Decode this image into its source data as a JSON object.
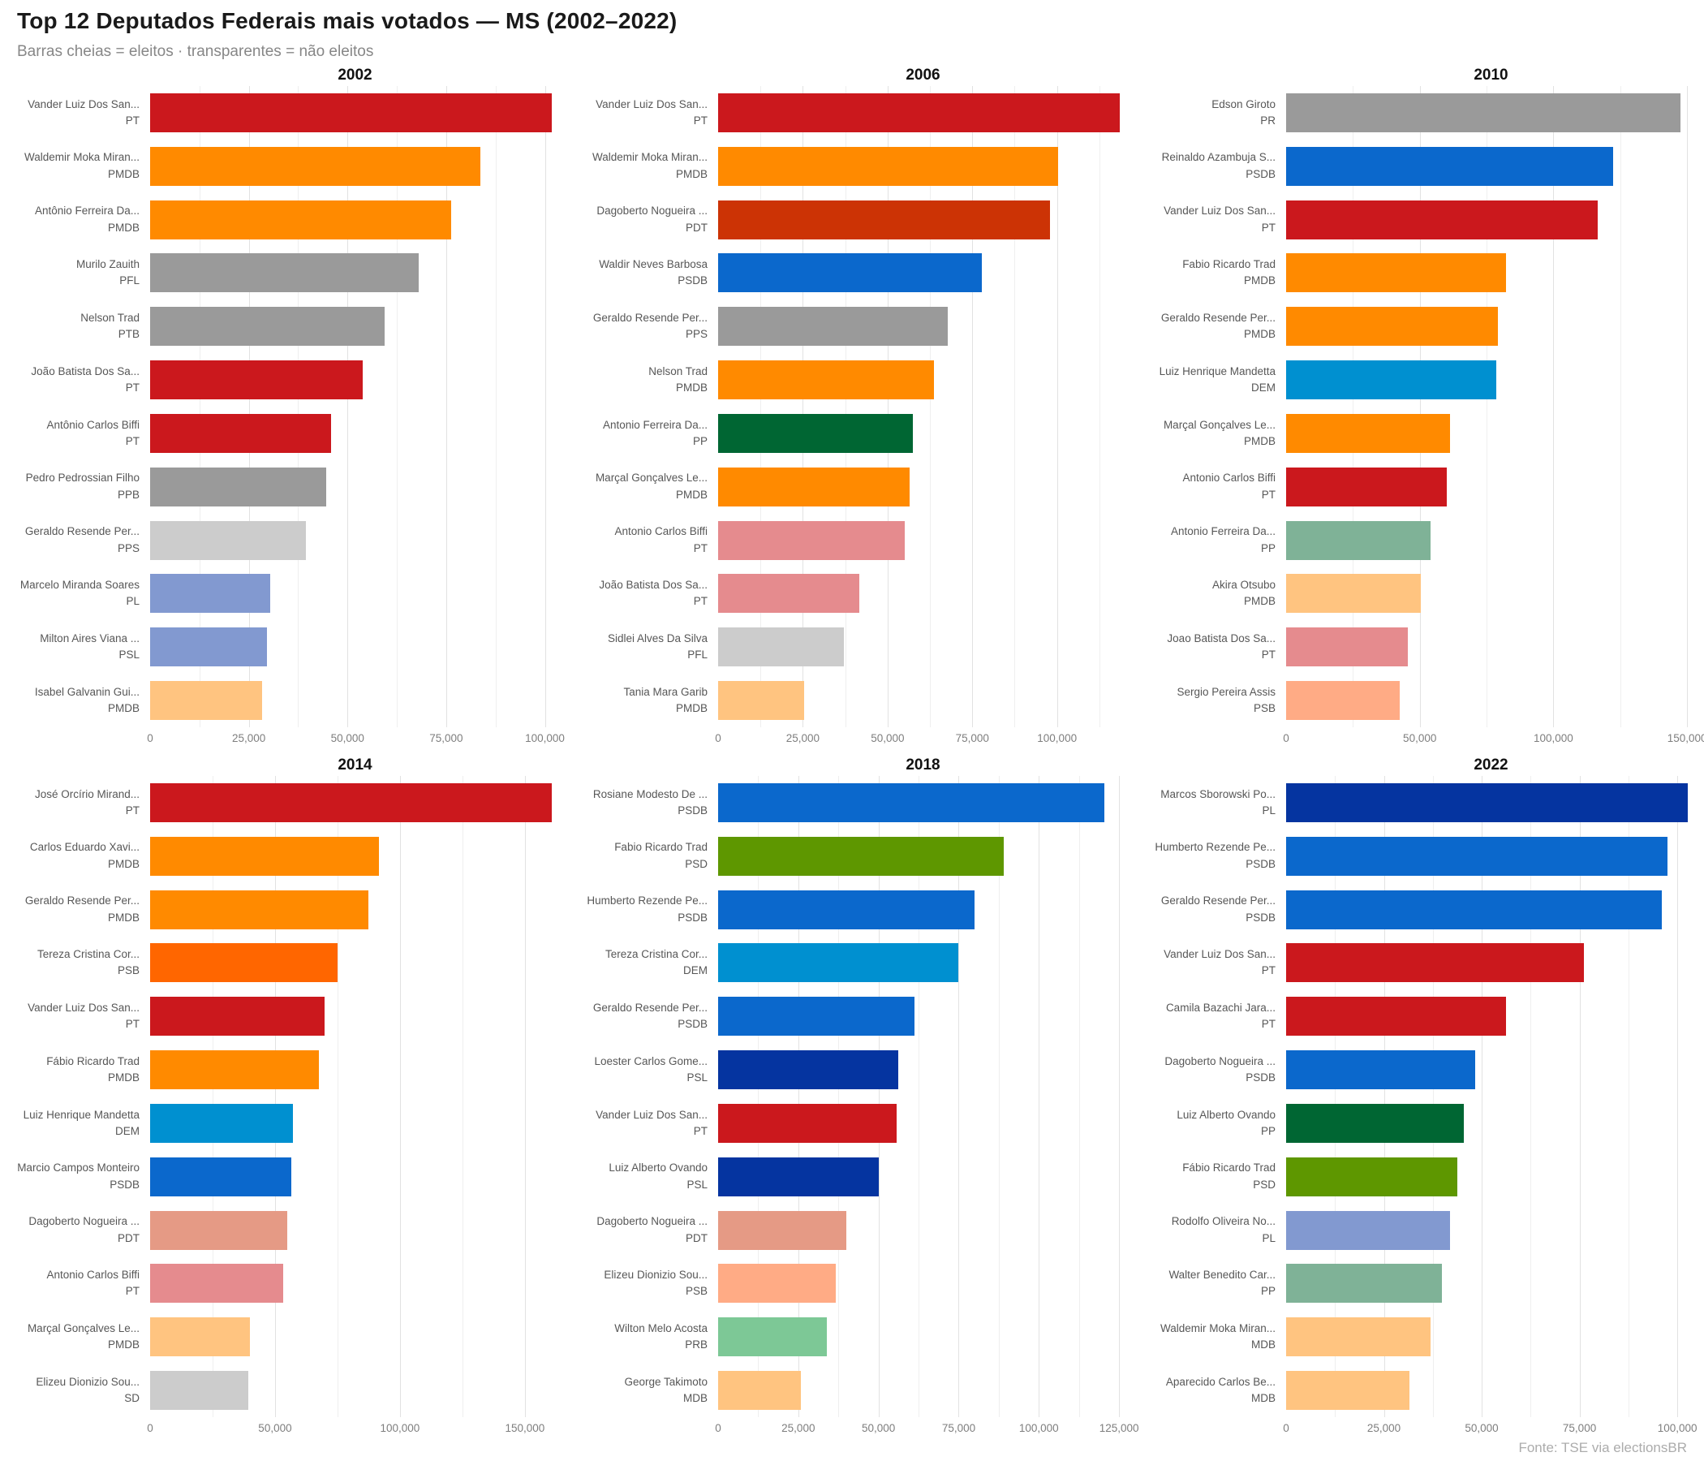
{
  "header": {
    "title": "Top 12 Deputados Federais mais votados — MS (2002–2022)",
    "subtitle": "Barras cheias = eleitos · transparentes = não eleitos"
  },
  "footer": {
    "source": "Fonte: TSE via electionsBR"
  },
  "colors": {
    "pt_full": "#CB181D",
    "pt_faded": "#E58B8E",
    "pmdb_full": "#FF8A00",
    "pmdb_faded": "#FFC480",
    "gray_full": "#9A9A9A",
    "gray_faded": "#CCCCCC",
    "psdb_full": "#0B68CC",
    "dem_full": "#0090D0",
    "pl_psl_full": "#0534A0",
    "pl_psl_faded": "#8299D0",
    "pdt_full": "#CC3305",
    "pdt_faded": "#E59A85",
    "pp_full": "#006633",
    "pp_faded": "#7FB297",
    "psb_full": "#FF6600",
    "psb_faded": "#FFAB85",
    "psd_full": "#5E9700",
    "prb_faded": "#7DC896",
    "gridline_major": "#E2E2E2",
    "gridline_minor": "#EFEFEF"
  },
  "chart_data": [
    {
      "type": "bar",
      "orientation": "horizontal",
      "title": "2002",
      "xlim": [
        0,
        103800
      ],
      "xticks": [
        0,
        25000,
        50000,
        75000,
        100000
      ],
      "bars": [
        {
          "name": "Vander Luiz Dos San...",
          "party": "PT",
          "value": 101800,
          "color": "#CB181D",
          "elected": true
        },
        {
          "name": "Waldemir Moka Miran...",
          "party": "PMDB",
          "value": 83700,
          "color": "#FF8A00",
          "elected": true
        },
        {
          "name": "Antônio Ferreira Da...",
          "party": "PMDB",
          "value": 76300,
          "color": "#FF8A00",
          "elected": true
        },
        {
          "name": "Murilo Zauith",
          "party": "PFL",
          "value": 68000,
          "color": "#9A9A9A",
          "elected": true
        },
        {
          "name": "Nelson Trad",
          "party": "PTB",
          "value": 59300,
          "color": "#9A9A9A",
          "elected": true
        },
        {
          "name": "João Batista Dos Sa...",
          "party": "PT",
          "value": 53800,
          "color": "#CB181D",
          "elected": true
        },
        {
          "name": "Antônio Carlos Biffi",
          "party": "PT",
          "value": 45800,
          "color": "#CB181D",
          "elected": true
        },
        {
          "name": "Pedro Pedrossian Filho",
          "party": "PPB",
          "value": 44700,
          "color": "#9A9A9A",
          "elected": true
        },
        {
          "name": "Geraldo Resende Per...",
          "party": "PPS",
          "value": 39500,
          "color": "#CCCCCC",
          "elected": false
        },
        {
          "name": "Marcelo Miranda Soares",
          "party": "PL",
          "value": 30400,
          "color": "#8299D0",
          "elected": false
        },
        {
          "name": "Milton Aires Viana ...",
          "party": "PSL",
          "value": 29700,
          "color": "#8299D0",
          "elected": false
        },
        {
          "name": "Isabel Galvanin Gui...",
          "party": "PMDB",
          "value": 28400,
          "color": "#FFC480",
          "elected": false
        }
      ]
    },
    {
      "type": "bar",
      "orientation": "horizontal",
      "title": "2006",
      "xlim": [
        0,
        120900
      ],
      "xticks": [
        0,
        25000,
        50000,
        75000,
        100000
      ],
      "bars": [
        {
          "name": "Vander Luiz Dos San...",
          "party": "PT",
          "value": 118500,
          "color": "#CB181D",
          "elected": true
        },
        {
          "name": "Waldemir Moka Miran...",
          "party": "PMDB",
          "value": 100400,
          "color": "#FF8A00",
          "elected": true
        },
        {
          "name": "Dagoberto Nogueira ...",
          "party": "PDT",
          "value": 97900,
          "color": "#CC3305",
          "elected": true
        },
        {
          "name": "Waldir Neves Barbosa",
          "party": "PSDB",
          "value": 77900,
          "color": "#0B68CC",
          "elected": true
        },
        {
          "name": "Geraldo Resende Per...",
          "party": "PPS",
          "value": 67800,
          "color": "#9A9A9A",
          "elected": true
        },
        {
          "name": "Nelson Trad",
          "party": "PMDB",
          "value": 63700,
          "color": "#FF8A00",
          "elected": true
        },
        {
          "name": "Antonio Ferreira Da...",
          "party": "PP",
          "value": 57400,
          "color": "#006633",
          "elected": true
        },
        {
          "name": "Marçal Gonçalves Le...",
          "party": "PMDB",
          "value": 56600,
          "color": "#FF8A00",
          "elected": true
        },
        {
          "name": "Antonio Carlos Biffi",
          "party": "PT",
          "value": 55000,
          "color": "#E58B8E",
          "elected": false
        },
        {
          "name": "João Batista Dos Sa...",
          "party": "PT",
          "value": 41700,
          "color": "#E58B8E",
          "elected": false
        },
        {
          "name": "Sidlei Alves Da Silva",
          "party": "PFL",
          "value": 37200,
          "color": "#CCCCCC",
          "elected": false
        },
        {
          "name": "Tania Mara Garib",
          "party": "PMDB",
          "value": 25400,
          "color": "#FFC480",
          "elected": false
        }
      ]
    },
    {
      "type": "bar",
      "orientation": "horizontal",
      "title": "2010",
      "xlim": [
        0,
        153300
      ],
      "xticks": [
        0,
        50000,
        100000,
        150000
      ],
      "bars": [
        {
          "name": "Edson Giroto",
          "party": "PR",
          "value": 147400,
          "color": "#9A9A9A",
          "elected": true
        },
        {
          "name": "Reinaldo Azambuja S...",
          "party": "PSDB",
          "value": 122300,
          "color": "#0B68CC",
          "elected": true
        },
        {
          "name": "Vander Luiz Dos San...",
          "party": "PT",
          "value": 116600,
          "color": "#CB181D",
          "elected": true
        },
        {
          "name": "Fabio Ricardo Trad",
          "party": "PMDB",
          "value": 82200,
          "color": "#FF8A00",
          "elected": true
        },
        {
          "name": "Geraldo Resende Per...",
          "party": "PMDB",
          "value": 79200,
          "color": "#FF8A00",
          "elected": true
        },
        {
          "name": "Luiz Henrique Mandetta",
          "party": "DEM",
          "value": 78500,
          "color": "#0090D0",
          "elected": true
        },
        {
          "name": "Marçal Gonçalves Le...",
          "party": "PMDB",
          "value": 61400,
          "color": "#FF8A00",
          "elected": true
        },
        {
          "name": "Antonio Carlos Biffi",
          "party": "PT",
          "value": 60200,
          "color": "#CB181D",
          "elected": true
        },
        {
          "name": "Antonio Ferreira Da...",
          "party": "PP",
          "value": 54100,
          "color": "#7FB297",
          "elected": false
        },
        {
          "name": "Akira Otsubo",
          "party": "PMDB",
          "value": 50300,
          "color": "#FFC480",
          "elected": false
        },
        {
          "name": "Joao Batista Dos Sa...",
          "party": "PT",
          "value": 45500,
          "color": "#E58B8E",
          "elected": false
        },
        {
          "name": "Sergio Pereira Assis",
          "party": "PSB",
          "value": 42500,
          "color": "#FFAB85",
          "elected": false
        }
      ]
    },
    {
      "type": "bar",
      "orientation": "horizontal",
      "title": "2014",
      "xlim": [
        0,
        164000
      ],
      "xticks": [
        0,
        50000,
        100000,
        150000
      ],
      "bars": [
        {
          "name": "José Orcírio Mirand...",
          "party": "PT",
          "value": 160800,
          "color": "#CB181D",
          "elected": true
        },
        {
          "name": "Carlos Eduardo Xavi...",
          "party": "PMDB",
          "value": 91600,
          "color": "#FF8A00",
          "elected": true
        },
        {
          "name": "Geraldo Resende Per...",
          "party": "PMDB",
          "value": 87300,
          "color": "#FF8A00",
          "elected": true
        },
        {
          "name": "Tereza Cristina Cor...",
          "party": "PSB",
          "value": 75000,
          "color": "#FF6600",
          "elected": true
        },
        {
          "name": "Vander Luiz Dos San...",
          "party": "PT",
          "value": 69800,
          "color": "#CB181D",
          "elected": true
        },
        {
          "name": "Fábio Ricardo Trad",
          "party": "PMDB",
          "value": 67600,
          "color": "#FF8A00",
          "elected": true
        },
        {
          "name": "Luiz Henrique Mandetta",
          "party": "DEM",
          "value": 57200,
          "color": "#0090D0",
          "elected": true
        },
        {
          "name": "Marcio Campos Monteiro",
          "party": "PSDB",
          "value": 56500,
          "color": "#0B68CC",
          "elected": true
        },
        {
          "name": "Dagoberto Nogueira ...",
          "party": "PDT",
          "value": 55000,
          "color": "#E59A85",
          "elected": false
        },
        {
          "name": "Antonio Carlos Biffi",
          "party": "PT",
          "value": 53200,
          "color": "#E58B8E",
          "elected": false
        },
        {
          "name": "Marçal Gonçalves Le...",
          "party": "PMDB",
          "value": 39800,
          "color": "#FFC480",
          "elected": false
        },
        {
          "name": "Elizeu Dionizio Sou...",
          "party": "SD",
          "value": 39200,
          "color": "#CCCCCC",
          "elected": false
        }
      ]
    },
    {
      "type": "bar",
      "orientation": "horizontal",
      "title": "2018",
      "xlim": [
        0,
        127750
      ],
      "xticks": [
        0,
        25000,
        50000,
        75000,
        100000,
        125000
      ],
      "bars": [
        {
          "name": "Rosiane Modesto De ...",
          "party": "PSDB",
          "value": 120500,
          "color": "#0B68CC",
          "elected": true
        },
        {
          "name": "Fabio Ricardo Trad",
          "party": "PSD",
          "value": 89100,
          "color": "#5E9700",
          "elected": true
        },
        {
          "name": "Humberto Rezende Pe...",
          "party": "PSDB",
          "value": 80000,
          "color": "#0B68CC",
          "elected": true
        },
        {
          "name": "Tereza Cristina Cor...",
          "party": "DEM",
          "value": 75000,
          "color": "#0090D0",
          "elected": true
        },
        {
          "name": "Geraldo Resende Per...",
          "party": "PSDB",
          "value": 61300,
          "color": "#0B68CC",
          "elected": true
        },
        {
          "name": "Loester Carlos Gome...",
          "party": "PSL",
          "value": 56100,
          "color": "#0534A0",
          "elected": true
        },
        {
          "name": "Vander Luiz Dos San...",
          "party": "PT",
          "value": 55600,
          "color": "#CB181D",
          "elected": true
        },
        {
          "name": "Luiz Alberto Ovando",
          "party": "PSL",
          "value": 50200,
          "color": "#0534A0",
          "elected": true
        },
        {
          "name": "Dagoberto Nogueira ...",
          "party": "PDT",
          "value": 40000,
          "color": "#E59A85",
          "elected": false
        },
        {
          "name": "Elizeu Dionizio Sou...",
          "party": "PSB",
          "value": 36700,
          "color": "#FFAB85",
          "elected": false
        },
        {
          "name": "Wilton Melo Acosta",
          "party": "PRB",
          "value": 33900,
          "color": "#7DC896",
          "elected": false
        },
        {
          "name": "George Takimoto",
          "party": "MDB",
          "value": 25800,
          "color": "#FFC480",
          "elected": false
        }
      ]
    },
    {
      "type": "bar",
      "orientation": "horizontal",
      "title": "2022",
      "xlim": [
        0,
        104750
      ],
      "xticks": [
        0,
        25000,
        50000,
        75000,
        100000
      ],
      "bars": [
        {
          "name": "Marcos Sborowski Po...",
          "party": "PL",
          "value": 102700,
          "color": "#0534A0",
          "elected": true
        },
        {
          "name": "Humberto Rezende Pe...",
          "party": "PSDB",
          "value": 97500,
          "color": "#0B68CC",
          "elected": true
        },
        {
          "name": "Geraldo Resende Per...",
          "party": "PSDB",
          "value": 96100,
          "color": "#0B68CC",
          "elected": true
        },
        {
          "name": "Vander Luiz Dos San...",
          "party": "PT",
          "value": 76200,
          "color": "#CB181D",
          "elected": true
        },
        {
          "name": "Camila Bazachi Jara...",
          "party": "PT",
          "value": 56300,
          "color": "#CB181D",
          "elected": true
        },
        {
          "name": "Dagoberto Nogueira ...",
          "party": "PSDB",
          "value": 48300,
          "color": "#0B68CC",
          "elected": true
        },
        {
          "name": "Luiz Alberto Ovando",
          "party": "PP",
          "value": 45500,
          "color": "#006633",
          "elected": true
        },
        {
          "name": "Fábio Ricardo Trad",
          "party": "PSD",
          "value": 43800,
          "color": "#5E9700",
          "elected": true
        },
        {
          "name": "Rodolfo Oliveira No...",
          "party": "PL",
          "value": 41900,
          "color": "#8299D0",
          "elected": false
        },
        {
          "name": "Walter Benedito Car...",
          "party": "PP",
          "value": 39800,
          "color": "#7FB297",
          "elected": false
        },
        {
          "name": "Waldemir Moka Miran...",
          "party": "MDB",
          "value": 36900,
          "color": "#FFC480",
          "elected": false
        },
        {
          "name": "Aparecido Carlos Be...",
          "party": "MDB",
          "value": 31500,
          "color": "#FFC480",
          "elected": false
        }
      ]
    }
  ]
}
